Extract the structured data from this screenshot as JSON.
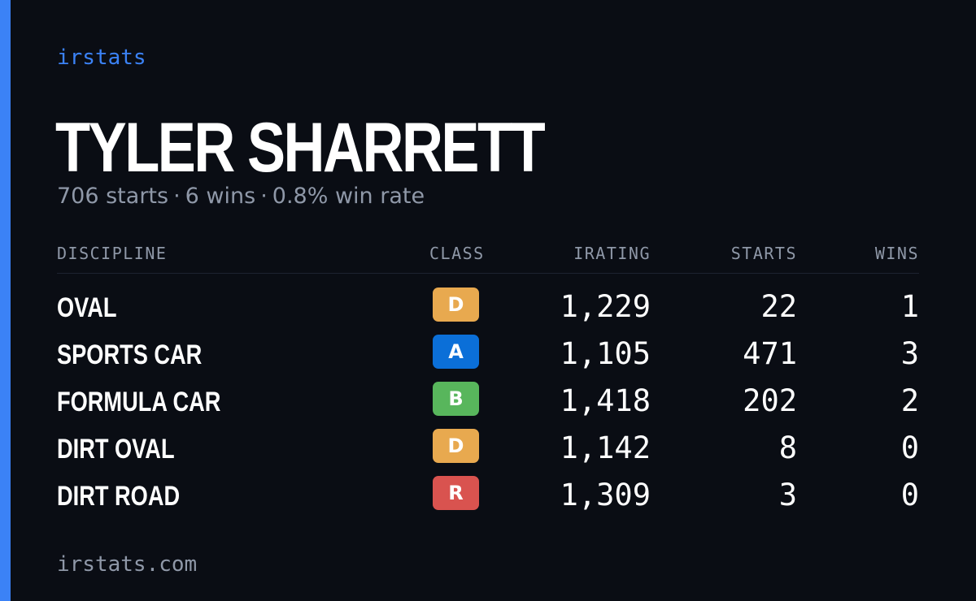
{
  "brand": "irstats",
  "driver": {
    "name": "TYLER SHARRETT",
    "summary": {
      "starts": "706 starts",
      "wins": "6 wins",
      "win_rate": "0.8% win rate",
      "separator": "·"
    }
  },
  "table": {
    "headers": {
      "discipline": "DISCIPLINE",
      "class": "CLASS",
      "irating": "IRATING",
      "starts": "STARTS",
      "wins": "WINS"
    },
    "rows": [
      {
        "discipline": "OVAL",
        "class": "D",
        "class_color": "#e8a94f",
        "irating": "1,229",
        "starts": "22",
        "wins": "1"
      },
      {
        "discipline": "SPORTS CAR",
        "class": "A",
        "class_color": "#0b6fd8",
        "irating": "1,105",
        "starts": "471",
        "wins": "3"
      },
      {
        "discipline": "FORMULA CAR",
        "class": "B",
        "class_color": "#58b65c",
        "irating": "1,418",
        "starts": "202",
        "wins": "2"
      },
      {
        "discipline": "DIRT OVAL",
        "class": "D",
        "class_color": "#e8a94f",
        "irating": "1,142",
        "starts": "8",
        "wins": "0"
      },
      {
        "discipline": "DIRT ROAD",
        "class": "R",
        "class_color": "#d9534f",
        "irating": "1,309",
        "starts": "3",
        "wins": "0"
      }
    ]
  },
  "footer": {
    "url": "irstats.com"
  },
  "colors": {
    "accent": "#3b82f6",
    "background": "#0a0d14",
    "muted": "#8f98a8"
  }
}
